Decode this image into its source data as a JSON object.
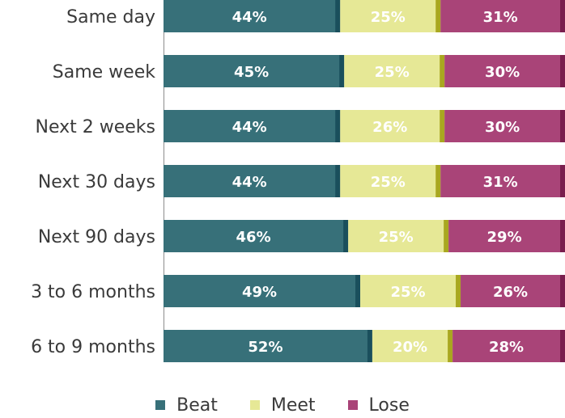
{
  "chart_data": {
    "type": "bar",
    "orientation": "horizontal",
    "stacked": "percent",
    "categories": [
      "Same day",
      "Same week",
      "Next 2 weeks",
      "Next 30 days",
      "Next 90 days",
      "3 to 6 months",
      "6 to 9 months"
    ],
    "series": [
      {
        "name": "Beat",
        "color": "#377079",
        "values": [
          44,
          45,
          44,
          44,
          46,
          49,
          52
        ],
        "labels": [
          "44%",
          "45%",
          "44%",
          "44%",
          "46%",
          "49%",
          "52%"
        ]
      },
      {
        "name": "Meet",
        "color": "#e6e896",
        "values": [
          25,
          25,
          26,
          25,
          25,
          25,
          20
        ],
        "labels": [
          "25%",
          "25%",
          "26%",
          "25%",
          "25%",
          "25%",
          "20%"
        ]
      },
      {
        "name": "Lose",
        "color": "#a94478",
        "values": [
          31,
          30,
          30,
          31,
          29,
          26,
          28
        ],
        "labels": [
          "31%",
          "30%",
          "30%",
          "31%",
          "29%",
          "26%",
          "28%"
        ]
      }
    ],
    "accent_colors": {
      "Beat": "#1a4f5c",
      "Meet": "#a9a720",
      "Lose": "#7a1e4e"
    },
    "xlim": [
      0,
      100
    ],
    "legend": "bottom"
  }
}
